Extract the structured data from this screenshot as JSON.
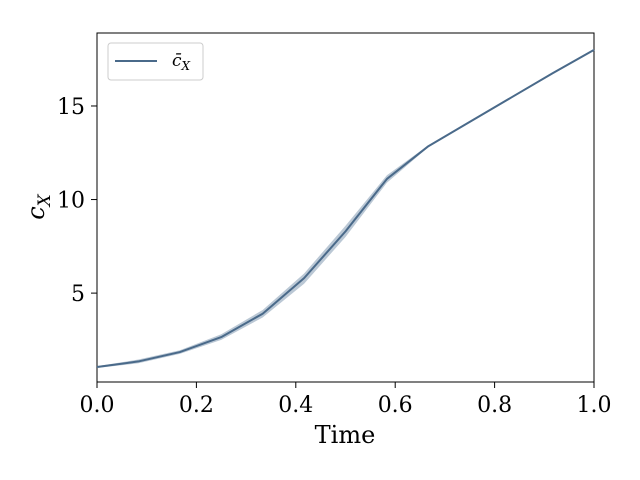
{
  "chart_data": {
    "type": "line",
    "title": "",
    "xlabel": "Time",
    "ylabel": "c_X",
    "xlim": [
      0.0,
      1.0
    ],
    "ylim": [
      0.25,
      18.9
    ],
    "xticks": [
      0.0,
      0.2,
      0.4,
      0.6,
      0.8,
      1.0
    ],
    "xtick_labels": [
      "0.0",
      "0.2",
      "0.4",
      "0.6",
      "0.8",
      "1.0"
    ],
    "yticks": [
      5,
      10,
      15
    ],
    "ytick_labels": [
      "5",
      "10",
      "15"
    ],
    "grid": false,
    "legend": {
      "position": "top-left"
    },
    "series": [
      {
        "name": "c̄_X",
        "color": "#4a6a8a",
        "band_color": "#b4c2d0",
        "x": [
          0.0,
          0.0833,
          0.1667,
          0.25,
          0.3333,
          0.4167,
          0.5,
          0.5833,
          0.6667,
          0.75,
          0.8333,
          0.9167,
          1.0
        ],
        "y": [
          1.05,
          1.35,
          1.85,
          2.65,
          3.9,
          5.8,
          8.3,
          11.1,
          12.85,
          14.15,
          15.45,
          16.75,
          18.0
        ],
        "y_lower": [
          1.0,
          1.25,
          1.75,
          2.5,
          3.7,
          5.5,
          8.0,
          10.9,
          12.8,
          14.1,
          15.4,
          16.7,
          17.95
        ],
        "y_upper": [
          1.1,
          1.45,
          1.95,
          2.8,
          4.1,
          6.05,
          8.6,
          11.3,
          12.9,
          14.2,
          15.5,
          16.8,
          18.05
        ]
      }
    ]
  }
}
